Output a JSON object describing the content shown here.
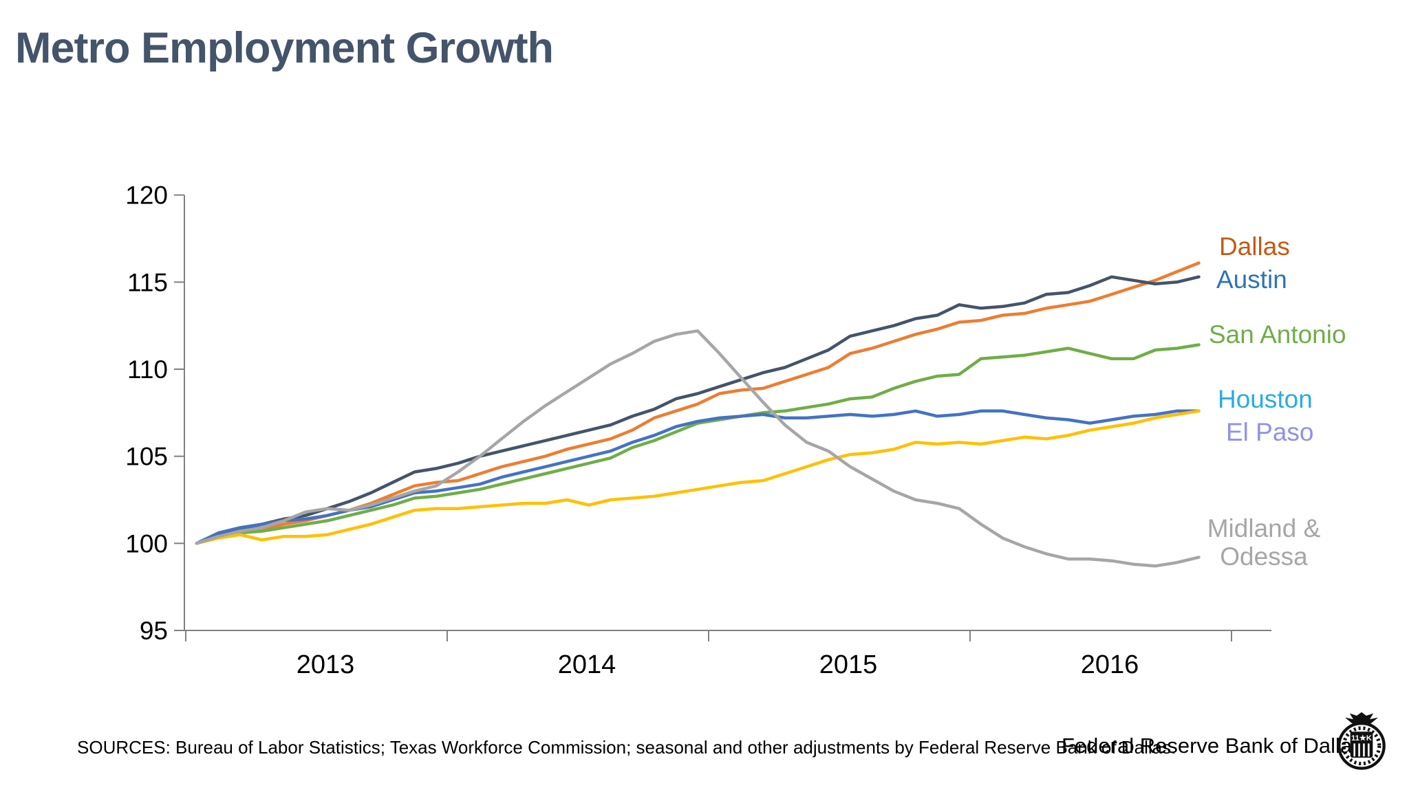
{
  "title": "Metro Employment Growth",
  "footer": {
    "sources": "SOURCES: Bureau of Labor Statistics; Texas Workforce Commission; seasonal and other adjustments by Federal Reserve Bank of Dallas.",
    "org": "Federal Reserve Bank of Dallas",
    "seal_text": "11★K"
  },
  "legend": [
    {
      "id": "dallas",
      "label": "Dallas",
      "color": "#C55A11"
    },
    {
      "id": "austin",
      "label": "Austin",
      "color": "#2E74B5"
    },
    {
      "id": "san_antonio",
      "label": "San Antonio",
      "color": "#70AD47"
    },
    {
      "id": "houston",
      "label": "Houston",
      "color": "#29ABE2"
    },
    {
      "id": "el_paso",
      "label": "El Paso",
      "color": "#8F8FF0"
    },
    {
      "id": "midland_odessa",
      "label": "Midland &\nOdessa",
      "color": "#A6A6A6"
    }
  ],
  "chart_data": {
    "type": "line",
    "title": "Metro Employment Growth",
    "xlabel": "",
    "ylabel": "",
    "ylim": [
      95,
      120
    ],
    "y_ticks": [
      95,
      100,
      105,
      110,
      115,
      120
    ],
    "x_year_labels": [
      "2013",
      "2014",
      "2015",
      "2016"
    ],
    "grid": false,
    "legend_position": "right",
    "axis_color": "#808080",
    "tick_label_color": "#000000",
    "x": [
      "Jan-13",
      "Feb-13",
      "Mar-13",
      "Apr-13",
      "May-13",
      "Jun-13",
      "Jul-13",
      "Aug-13",
      "Sep-13",
      "Oct-13",
      "Nov-13",
      "Dec-13",
      "Jan-14",
      "Feb-14",
      "Mar-14",
      "Apr-14",
      "May-14",
      "Jun-14",
      "Jul-14",
      "Aug-14",
      "Sep-14",
      "Oct-14",
      "Nov-14",
      "Dec-14",
      "Jan-15",
      "Feb-15",
      "Mar-15",
      "Apr-15",
      "May-15",
      "Jun-15",
      "Jul-15",
      "Aug-15",
      "Sep-15",
      "Oct-15",
      "Nov-15",
      "Dec-15",
      "Jan-16",
      "Feb-16",
      "Mar-16",
      "Apr-16",
      "May-16",
      "Jun-16",
      "Jul-16",
      "Aug-16",
      "Sep-16",
      "Oct-16",
      "Nov-16"
    ],
    "series": [
      {
        "id": "dallas",
        "name": "Dallas",
        "color": "#ED7D31",
        "values": [
          100.0,
          100.4,
          100.6,
          100.8,
          101.1,
          101.3,
          101.6,
          101.9,
          102.3,
          102.8,
          103.3,
          103.5,
          103.6,
          104.0,
          104.4,
          104.7,
          105.0,
          105.4,
          105.7,
          106.0,
          106.5,
          107.2,
          107.6,
          108.0,
          108.6,
          108.8,
          108.9,
          109.3,
          109.7,
          110.1,
          110.9,
          111.2,
          111.6,
          112.0,
          112.3,
          112.7,
          112.8,
          113.1,
          113.2,
          113.5,
          113.7,
          113.9,
          114.3,
          114.7,
          115.1,
          115.6,
          116.1
        ]
      },
      {
        "id": "austin",
        "name": "Austin",
        "color": "#44546A",
        "values": [
          100.0,
          100.5,
          100.8,
          101.1,
          101.4,
          101.6,
          102.0,
          102.4,
          102.9,
          103.5,
          104.1,
          104.3,
          104.6,
          105.0,
          105.3,
          105.6,
          105.9,
          106.2,
          106.5,
          106.8,
          107.3,
          107.7,
          108.3,
          108.6,
          109.0,
          109.4,
          109.8,
          110.1,
          110.6,
          111.1,
          111.9,
          112.2,
          112.5,
          112.9,
          113.1,
          113.7,
          113.5,
          113.6,
          113.8,
          114.3,
          114.4,
          114.8,
          115.3,
          115.1,
          114.9,
          115.0,
          115.3
        ]
      },
      {
        "id": "san_antonio",
        "name": "San Antonio",
        "color": "#70AD47",
        "values": [
          100.0,
          100.4,
          100.6,
          100.7,
          100.9,
          101.1,
          101.3,
          101.6,
          101.9,
          102.2,
          102.6,
          102.7,
          102.9,
          103.1,
          103.4,
          103.7,
          104.0,
          104.3,
          104.6,
          104.9,
          105.5,
          105.9,
          106.4,
          106.9,
          107.1,
          107.3,
          107.5,
          107.6,
          107.8,
          108.0,
          108.3,
          108.4,
          108.9,
          109.3,
          109.6,
          109.7,
          110.6,
          110.7,
          110.8,
          111.0,
          111.2,
          110.9,
          110.6,
          110.6,
          111.1,
          111.2,
          111.4
        ]
      },
      {
        "id": "houston",
        "name": "Houston",
        "color": "#4472C4",
        "values": [
          100.0,
          100.6,
          100.9,
          101.1,
          101.3,
          101.4,
          101.6,
          101.9,
          102.1,
          102.5,
          102.9,
          103.0,
          103.2,
          103.4,
          103.8,
          104.1,
          104.4,
          104.7,
          105.0,
          105.3,
          105.8,
          106.2,
          106.7,
          107.0,
          107.2,
          107.3,
          107.4,
          107.2,
          107.2,
          107.3,
          107.4,
          107.3,
          107.4,
          107.6,
          107.3,
          107.4,
          107.6,
          107.6,
          107.4,
          107.2,
          107.1,
          106.9,
          107.1,
          107.3,
          107.4,
          107.6,
          107.6
        ]
      },
      {
        "id": "el_paso",
        "name": "El Paso",
        "color": "#FFC000",
        "values": [
          100.0,
          100.3,
          100.5,
          100.2,
          100.4,
          100.4,
          100.5,
          100.8,
          101.1,
          101.5,
          101.9,
          102.0,
          102.0,
          102.1,
          102.2,
          102.3,
          102.3,
          102.5,
          102.2,
          102.5,
          102.6,
          102.7,
          102.9,
          103.1,
          103.3,
          103.5,
          103.6,
          104.0,
          104.4,
          104.8,
          105.1,
          105.2,
          105.4,
          105.8,
          105.7,
          105.8,
          105.7,
          105.9,
          106.1,
          106.0,
          106.2,
          106.5,
          106.7,
          106.9,
          107.2,
          107.4,
          107.6
        ]
      },
      {
        "id": "midland_odessa",
        "name": "Midland & Odessa",
        "color": "#A6A6A6",
        "values": [
          100.0,
          100.4,
          100.7,
          100.9,
          101.3,
          101.8,
          102.0,
          101.9,
          102.2,
          102.6,
          103.0,
          103.3,
          104.1,
          105.0,
          106.0,
          107.0,
          107.9,
          108.7,
          109.5,
          110.3,
          110.9,
          111.6,
          112.0,
          112.2,
          110.9,
          109.5,
          108.1,
          106.8,
          105.8,
          105.3,
          104.4,
          103.7,
          103.0,
          102.5,
          102.3,
          102.0,
          101.1,
          100.3,
          99.8,
          99.4,
          99.1,
          99.1,
          99.0,
          98.8,
          98.7,
          98.9,
          99.2
        ]
      }
    ]
  }
}
